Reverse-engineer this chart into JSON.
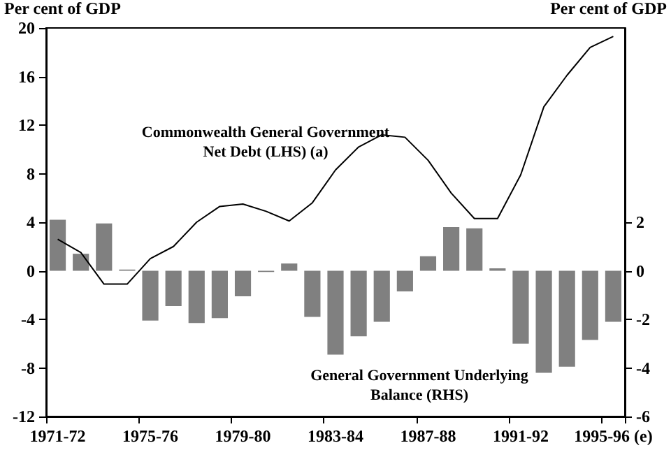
{
  "chart_data": {
    "type": "bar",
    "ylabel": "Per cent of GDP",
    "y2label": "Per cent of GDP",
    "categories": [
      "1971-72",
      null,
      null,
      null,
      "1975-76",
      null,
      null,
      null,
      "1979-80",
      null,
      null,
      null,
      "1983-84",
      null,
      null,
      null,
      "1987-88",
      null,
      null,
      null,
      "1991-92",
      null,
      null,
      null,
      "1995-96 (e)"
    ],
    "series": [
      {
        "axis": "y2",
        "color": "#808080",
        "values": [
          2.1,
          0.7,
          1.95,
          0.05,
          -2.05,
          -1.45,
          -2.15,
          -1.95,
          -1.05,
          -0.05,
          0.3,
          -1.9,
          -3.45,
          -2.7,
          -2.1,
          -0.85,
          0.6,
          1.8,
          1.75,
          0.1,
          -3.0,
          -4.2,
          -3.95,
          -2.85,
          -2.1
        ]
      },
      {
        "type": "line",
        "color": "#000000",
        "values": [
          2.6,
          1.5,
          -1.1,
          -1.1,
          1.0,
          2.0,
          4.0,
          5.3,
          5.5,
          4.9,
          4.1,
          5.6,
          8.3,
          10.2,
          11.2,
          11.0,
          9.1,
          6.4,
          4.3,
          4.3,
          7.9,
          13.5,
          16.1,
          18.4,
          19.3
        ]
      }
    ],
    "ylim": [
      -12,
      20
    ],
    "yticks": [
      -12,
      -8,
      -4,
      0,
      4,
      8,
      12,
      16,
      20
    ],
    "y2lim": [
      -6,
      10
    ],
    "y2ticks": [
      -6,
      -4,
      -2,
      0,
      2
    ],
    "annotations": [
      "Commonwealth General Government\nNet Debt (LHS) (a)",
      "General Government Underlying\nBalance (RHS)"
    ],
    "grid": false,
    "marker": "none",
    "line_style": "solid"
  }
}
